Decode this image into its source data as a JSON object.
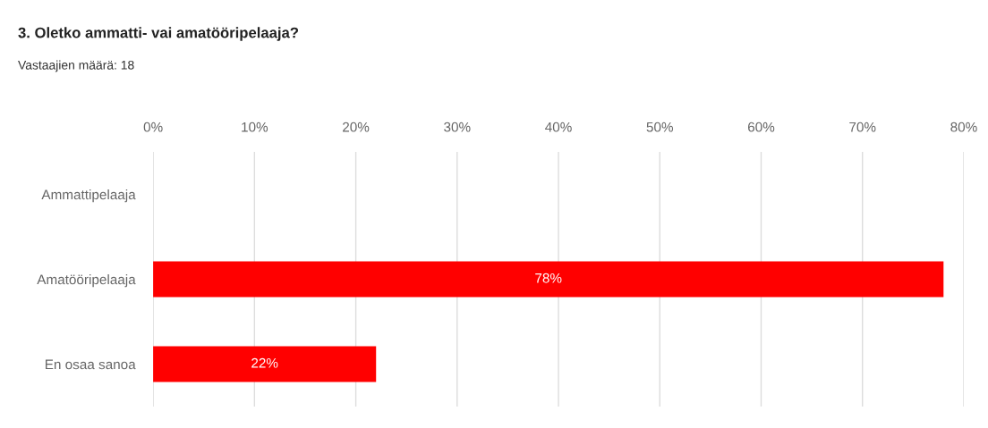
{
  "chart_data": {
    "type": "bar",
    "orientation": "horizontal",
    "title": "3. Oletko ammatti- vai amatööripelaaja?",
    "subtitle": "Vastaajien määrä: 18",
    "categories": [
      "Ammattipelaaja",
      "Amatööripelaaja",
      "En osaa sanoa"
    ],
    "values": [
      0,
      78,
      22
    ],
    "value_labels": [
      null,
      "78%",
      "22%"
    ],
    "color": "#ff0000",
    "xlim": [
      0,
      80
    ],
    "xticks": [
      {
        "value": 0,
        "label": "0%"
      },
      {
        "value": 10,
        "label": "10%"
      },
      {
        "value": 20,
        "label": "20%"
      },
      {
        "value": 30,
        "label": "30%"
      },
      {
        "value": 40,
        "label": "40%"
      },
      {
        "value": 50,
        "label": "50%"
      },
      {
        "value": 60,
        "label": "60%"
      },
      {
        "value": 70,
        "label": "70%"
      },
      {
        "value": 80,
        "label": "80%"
      }
    ],
    "grid": "x",
    "legend": false
  }
}
